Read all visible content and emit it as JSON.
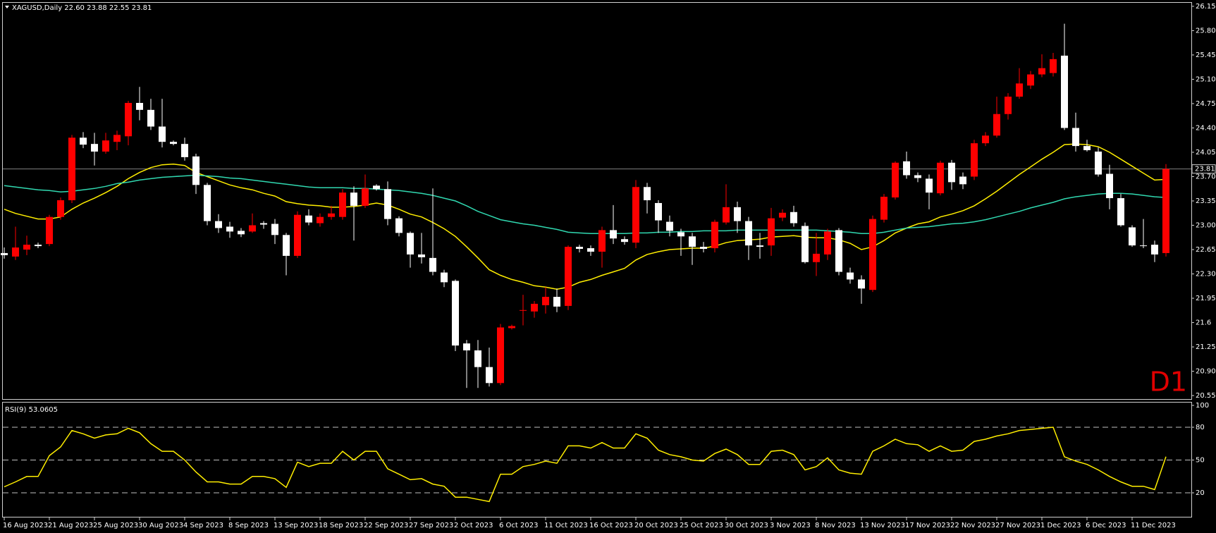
{
  "chart_data": [
    {
      "type": "candlestick",
      "title": "XAGUSD,Daily 22.60 23.88 22.55 23.81",
      "annotation": "D1",
      "x": [
        "16 Aug 2023",
        null,
        null,
        null,
        "21 Aug 2023",
        null,
        null,
        null,
        "25 Aug 2023",
        null,
        null,
        null,
        "30 Aug 2023",
        null,
        null,
        null,
        "4 Sep 2023",
        null,
        null,
        null,
        "8 Sep 2023",
        null,
        null,
        null,
        "13 Sep 2023",
        null,
        null,
        null,
        "18 Sep 2023",
        null,
        null,
        null,
        "22 Sep 2023",
        null,
        null,
        null,
        "27 Sep 2023",
        null,
        null,
        null,
        "2 Oct 2023",
        null,
        null,
        null,
        "6 Oct 2023",
        null,
        null,
        null,
        "11 Oct 2023",
        null,
        null,
        null,
        "16 Oct 2023",
        null,
        null,
        null,
        "20 Oct 2023",
        null,
        null,
        null,
        "25 Oct 2023",
        null,
        null,
        null,
        "30 Oct 2023",
        null,
        null,
        null,
        "3 Nov 2023",
        null,
        null,
        null,
        "8 Nov 2023",
        null,
        null,
        null,
        "13 Nov 2023",
        null,
        null,
        null,
        "17 Nov 2023",
        null,
        null,
        null,
        "22 Nov 2023",
        null,
        null,
        null,
        "27 Nov 2023",
        null,
        null,
        null,
        "1 Dec 2023",
        null,
        null,
        null,
        "6 Dec 2023",
        null,
        null,
        null,
        "11 Dec 2023",
        null,
        null,
        null
      ],
      "open": [
        22.6,
        22.55,
        22.65,
        22.72,
        22.73,
        23.12,
        23.36,
        24.26,
        24.17,
        24.06,
        24.2,
        24.28,
        24.76,
        24.66,
        24.42,
        24.2,
        24.17,
        23.99,
        23.58,
        23.06,
        22.98,
        22.92,
        22.91,
        23.03,
        23.02,
        22.86,
        22.56,
        23.14,
        23.03,
        23.12,
        23.12,
        23.47,
        23.28,
        23.57,
        23.52,
        23.1,
        22.89,
        22.58,
        22.53,
        22.32,
        22.2,
        21.3,
        21.2,
        20.96,
        20.73,
        21.52,
        21.77,
        21.76,
        21.85,
        21.97,
        21.84,
        22.69,
        22.67,
        22.62,
        22.93,
        22.8,
        22.75,
        23.55,
        23.32,
        23.05,
        22.9,
        22.84,
        22.69,
        22.67,
        23.04,
        23.26,
        23.06,
        22.71,
        22.71,
        23.11,
        23.19,
        22.99,
        22.47,
        22.58,
        22.93,
        22.32,
        22.22,
        22.07,
        23.08,
        23.4,
        23.92,
        23.72,
        23.67,
        23.46,
        23.9,
        23.7,
        23.7,
        24.18,
        24.29,
        24.6,
        24.85,
        25.01,
        25.17,
        25.19,
        25.44,
        24.4,
        24.14,
        24.06,
        23.74,
        23.39,
        22.97,
        22.71,
        22.72,
        22.6
      ],
      "high": [
        22.68,
        22.98,
        22.85,
        22.75,
        23.15,
        23.4,
        24.3,
        24.34,
        24.33,
        24.33,
        24.36,
        24.79,
        24.99,
        24.82,
        24.82,
        24.22,
        24.26,
        24.03,
        23.61,
        23.16,
        23.05,
        22.96,
        23.17,
        23.06,
        23.09,
        22.89,
        23.2,
        23.23,
        23.17,
        23.28,
        23.52,
        23.56,
        23.73,
        23.59,
        23.63,
        23.13,
        22.91,
        22.89,
        23.53,
        22.36,
        22.22,
        21.35,
        21.35,
        21.24,
        21.58,
        21.57,
        22.0,
        21.91,
        22.11,
        22.09,
        22.71,
        22.72,
        22.71,
        22.98,
        23.29,
        22.84,
        23.65,
        23.61,
        23.36,
        23.14,
        22.95,
        22.89,
        22.76,
        23.08,
        23.59,
        23.34,
        23.12,
        22.89,
        23.25,
        23.23,
        23.28,
        23.04,
        22.89,
        22.95,
        22.96,
        22.39,
        22.28,
        23.14,
        23.45,
        23.92,
        24.06,
        23.76,
        23.73,
        23.93,
        23.94,
        23.76,
        24.23,
        24.34,
        24.85,
        24.9,
        25.26,
        25.22,
        25.46,
        25.48,
        25.9,
        24.62,
        24.23,
        24.12,
        23.87,
        23.45,
        23.0,
        23.09,
        22.78,
        23.88
      ],
      "low": [
        22.52,
        22.5,
        22.57,
        22.67,
        22.7,
        23.08,
        23.32,
        24.11,
        23.86,
        24.03,
        24.08,
        24.15,
        24.51,
        24.37,
        24.12,
        24.15,
        23.93,
        23.45,
        23.0,
        22.89,
        22.82,
        22.83,
        22.89,
        22.95,
        22.73,
        22.28,
        22.53,
        23.0,
        22.98,
        23.08,
        23.08,
        22.78,
        23.25,
        23.5,
        23.0,
        22.84,
        22.39,
        22.45,
        22.28,
        22.11,
        21.19,
        20.66,
        20.66,
        20.68,
        20.7,
        21.5,
        21.56,
        21.67,
        21.73,
        21.75,
        21.78,
        22.61,
        22.56,
        22.39,
        22.73,
        22.72,
        22.67,
        23.17,
        22.89,
        22.84,
        22.56,
        22.43,
        22.61,
        22.61,
        23.01,
        22.89,
        22.5,
        22.52,
        22.56,
        23.06,
        22.98,
        22.45,
        22.27,
        22.5,
        22.28,
        22.16,
        21.87,
        22.04,
        23.04,
        23.37,
        23.67,
        23.62,
        23.23,
        23.43,
        23.51,
        23.52,
        23.65,
        24.14,
        24.26,
        24.52,
        24.82,
        24.96,
        25.13,
        25.14,
        24.37,
        24.06,
        24.06,
        23.7,
        23.23,
        22.98,
        22.69,
        22.67,
        22.47,
        22.55
      ],
      "close": [
        22.57,
        22.68,
        22.72,
        22.7,
        23.12,
        23.36,
        24.26,
        24.16,
        24.06,
        24.22,
        24.3,
        24.76,
        24.66,
        24.42,
        24.2,
        24.17,
        23.98,
        23.58,
        23.06,
        22.96,
        22.91,
        22.87,
        23.0,
        23.01,
        22.86,
        22.56,
        23.15,
        23.04,
        23.12,
        23.17,
        23.47,
        23.28,
        23.53,
        23.52,
        23.09,
        22.89,
        22.58,
        22.54,
        22.33,
        22.18,
        21.27,
        21.2,
        20.96,
        20.73,
        21.53,
        21.55,
        21.78,
        21.87,
        21.97,
        21.83,
        22.69,
        22.66,
        22.62,
        22.93,
        22.81,
        22.76,
        23.55,
        23.36,
        23.07,
        22.92,
        22.84,
        22.69,
        22.66,
        23.05,
        23.26,
        23.06,
        22.71,
        22.69,
        23.1,
        23.18,
        23.03,
        22.47,
        22.59,
        22.91,
        22.33,
        22.22,
        22.09,
        23.09,
        23.41,
        23.9,
        23.72,
        23.68,
        23.47,
        23.9,
        23.62,
        23.59,
        24.18,
        24.29,
        24.6,
        24.85,
        25.04,
        25.17,
        25.26,
        25.39,
        24.4,
        24.14,
        24.08,
        23.73,
        23.39,
        23.0,
        22.71,
        22.7,
        22.58,
        23.81
      ],
      "up_color": "#ff0000",
      "down_color": "#ffffff",
      "overlays": [
        {
          "color": "#ffee00",
          "values": [
            23.23,
            23.17,
            23.13,
            23.09,
            23.09,
            23.12,
            23.23,
            23.32,
            23.39,
            23.47,
            23.56,
            23.67,
            23.76,
            23.83,
            23.87,
            23.88,
            23.86,
            23.76,
            23.7,
            23.64,
            23.58,
            23.54,
            23.51,
            23.46,
            23.42,
            23.34,
            23.31,
            23.29,
            23.28,
            23.26,
            23.26,
            23.27,
            23.29,
            23.32,
            23.29,
            23.23,
            23.16,
            23.12,
            23.04,
            22.95,
            22.84,
            22.69,
            22.53,
            22.36,
            22.28,
            22.22,
            22.18,
            22.13,
            22.11,
            22.08,
            22.11,
            22.18,
            22.22,
            22.28,
            22.33,
            22.38,
            22.5,
            22.58,
            22.62,
            22.65,
            22.66,
            22.67,
            22.67,
            22.7,
            22.75,
            22.78,
            22.79,
            22.8,
            22.83,
            22.84,
            22.85,
            22.83,
            22.82,
            22.82,
            22.79,
            22.74,
            22.65,
            22.69,
            22.78,
            22.89,
            22.96,
            23.02,
            23.05,
            23.12,
            23.16,
            23.21,
            23.28,
            23.38,
            23.49,
            23.61,
            23.73,
            23.84,
            23.95,
            24.05,
            24.16,
            24.17,
            24.16,
            24.13,
            24.05,
            23.95,
            23.85,
            23.75,
            23.65,
            23.66
          ]
        },
        {
          "color": "#30d8b0",
          "values": [
            23.57,
            23.55,
            23.53,
            23.51,
            23.5,
            23.48,
            23.49,
            23.51,
            23.53,
            23.56,
            23.6,
            23.62,
            23.65,
            23.67,
            23.69,
            23.7,
            23.71,
            23.72,
            23.71,
            23.7,
            23.68,
            23.67,
            23.65,
            23.63,
            23.61,
            23.59,
            23.57,
            23.55,
            23.54,
            23.54,
            23.54,
            23.53,
            23.53,
            23.52,
            23.51,
            23.5,
            23.48,
            23.46,
            23.43,
            23.39,
            23.35,
            23.28,
            23.2,
            23.14,
            23.08,
            23.05,
            23.02,
            23.0,
            22.97,
            22.94,
            22.9,
            22.89,
            22.88,
            22.88,
            22.88,
            22.88,
            22.89,
            22.89,
            22.9,
            22.9,
            22.91,
            22.91,
            22.92,
            22.92,
            22.92,
            22.93,
            22.93,
            22.93,
            22.93,
            22.93,
            22.93,
            22.93,
            22.93,
            22.92,
            22.91,
            22.9,
            22.88,
            22.88,
            22.9,
            22.93,
            22.96,
            22.97,
            22.98,
            23.0,
            23.02,
            23.03,
            23.05,
            23.08,
            23.12,
            23.16,
            23.2,
            23.25,
            23.29,
            23.33,
            23.38,
            23.41,
            23.43,
            23.45,
            23.46,
            23.46,
            23.45,
            23.43,
            23.41,
            23.4
          ]
        }
      ],
      "current_price": 23.81,
      "ylim": [
        20.5,
        26.2
      ],
      "yticks": [
        20.55,
        {
          "value": 20.9,
          "label": "20.90"
        },
        21.25,
        21.6,
        21.95,
        {
          "value": 22.3,
          "label": "22.30"
        },
        22.65,
        {
          "value": 23,
          "label": "23.00"
        },
        23.35,
        {
          "value": 23.7,
          "label": "23.70"
        },
        24.05,
        {
          "value": 24.4,
          "label": "24.40"
        },
        24.75,
        {
          "value": 25.1,
          "label": "25.10"
        },
        25.45,
        {
          "value": 25.8,
          "label": "25.80"
        },
        26.15
      ]
    },
    {
      "type": "line",
      "title": "RSI(9) 53.0605",
      "color": "#ffee00",
      "values": [
        25.5,
        30,
        35,
        35,
        54,
        62,
        77,
        74,
        70,
        73,
        74,
        79,
        75,
        65,
        58,
        58,
        50,
        39,
        30,
        30,
        28,
        28,
        35,
        35,
        33,
        25,
        48,
        44,
        47,
        47,
        58,
        50,
        58,
        58,
        42,
        37,
        32,
        33,
        28,
        26,
        16,
        16,
        14,
        12,
        37,
        37,
        44,
        46,
        49,
        47,
        63,
        63,
        61,
        66,
        61,
        61,
        74,
        70,
        59,
        55,
        53,
        50,
        49,
        56,
        60,
        55,
        46,
        46,
        58,
        59,
        55,
        41,
        44,
        52,
        41,
        38,
        37,
        58,
        63,
        69,
        65,
        64,
        58,
        63,
        58,
        59,
        67,
        69,
        72,
        74,
        77,
        78,
        79,
        80,
        53,
        49,
        46,
        41,
        35,
        30,
        26,
        26,
        23,
        53.06
      ],
      "ylim": [
        0,
        100
      ],
      "yticks": [
        20,
        50,
        80,
        100
      ],
      "levels": [
        20,
        50,
        80
      ]
    }
  ]
}
